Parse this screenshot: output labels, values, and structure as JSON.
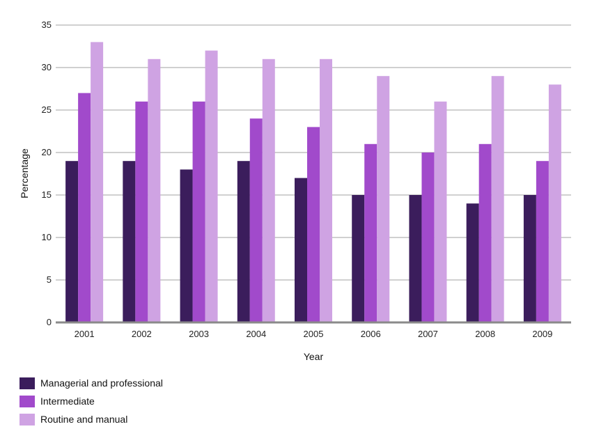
{
  "chart_data": {
    "type": "bar",
    "title": "",
    "xlabel": "Year",
    "ylabel": "Percentage",
    "ylim": [
      0,
      35
    ],
    "yticks": [
      0,
      5,
      10,
      15,
      20,
      25,
      30,
      35
    ],
    "grid": true,
    "legend_position": "bottom-left",
    "categories": [
      "2001",
      "2002",
      "2003",
      "2004",
      "2005",
      "2006",
      "2007",
      "2008",
      "2009"
    ],
    "series": [
      {
        "name": "Managerial and professional",
        "color": "#3b1d5c",
        "values": [
          19,
          19,
          18,
          19,
          17,
          15,
          15,
          14,
          15
        ]
      },
      {
        "name": "Intermediate",
        "color": "#a14acb",
        "values": [
          27,
          26,
          26,
          24,
          23,
          21,
          20,
          21,
          19
        ]
      },
      {
        "name": "Routine and manual",
        "color": "#cfa3e3",
        "values": [
          33,
          31,
          32,
          31,
          31,
          29,
          26,
          29,
          28
        ]
      }
    ]
  }
}
